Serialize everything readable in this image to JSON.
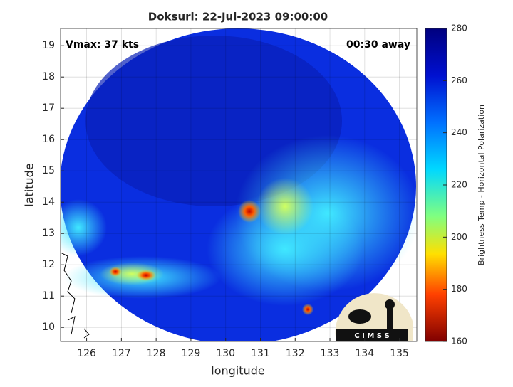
{
  "chart_data": {
    "type": "image-map",
    "title": "Doksuri: 22-Jul-2023 09:00:00",
    "annotations": [
      "Vmax: 37 kts",
      "00:30 away"
    ],
    "x_label": "longitude",
    "y_label": "latitude",
    "xlim": [
      125.25,
      135.5
    ],
    "xticks": [
      126,
      127,
      128,
      129,
      130,
      131,
      132,
      133,
      134,
      135
    ],
    "ylim": [
      9.55,
      19.55
    ],
    "yticks": [
      10,
      11,
      12,
      13,
      14,
      15,
      16,
      17,
      18,
      19
    ],
    "grid": true,
    "colorbar": {
      "label": "Brightness Temp - Horizontal Polarization",
      "lim": [
        160,
        280
      ],
      "ticks": [
        160,
        180,
        200,
        220,
        240,
        260,
        280
      ]
    },
    "logo_text": "C I M S S"
  }
}
